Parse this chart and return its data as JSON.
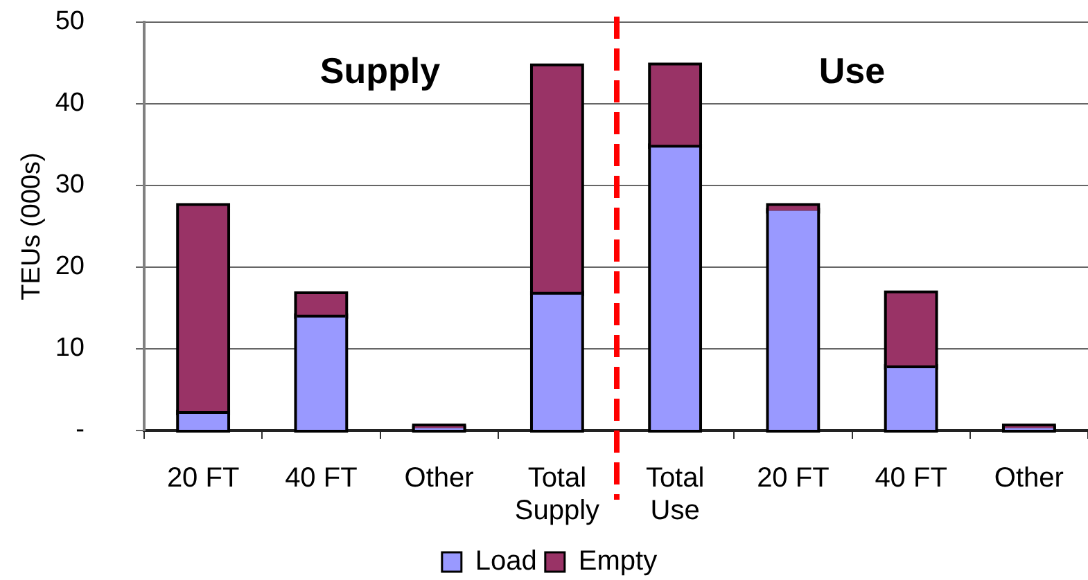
{
  "chart_data": {
    "type": "bar",
    "ylabel": "TEUs (000s)",
    "categories": [
      "20 FT",
      "40 FT",
      "Other",
      "Total Supply",
      "Total Use",
      "20 FT",
      "40 FT",
      "Other"
    ],
    "series": [
      {
        "name": "Load",
        "color": "#9999ff",
        "values": [
          2.2,
          14.0,
          0.3,
          16.8,
          34.8,
          26.9,
          7.8,
          0.3
        ]
      },
      {
        "name": "Empty",
        "color": "#993366",
        "values": [
          25.3,
          2.7,
          0.2,
          27.8,
          9.9,
          0.6,
          9.0,
          0.2
        ]
      }
    ],
    "stacked": true,
    "ylim": [
      0,
      50
    ],
    "yticks": [
      {
        "value": 0,
        "label": "-"
      },
      10,
      20,
      30,
      40,
      50
    ],
    "grid": "y",
    "legend": "bottom",
    "annotations": [
      "Supply",
      "Use"
    ]
  }
}
